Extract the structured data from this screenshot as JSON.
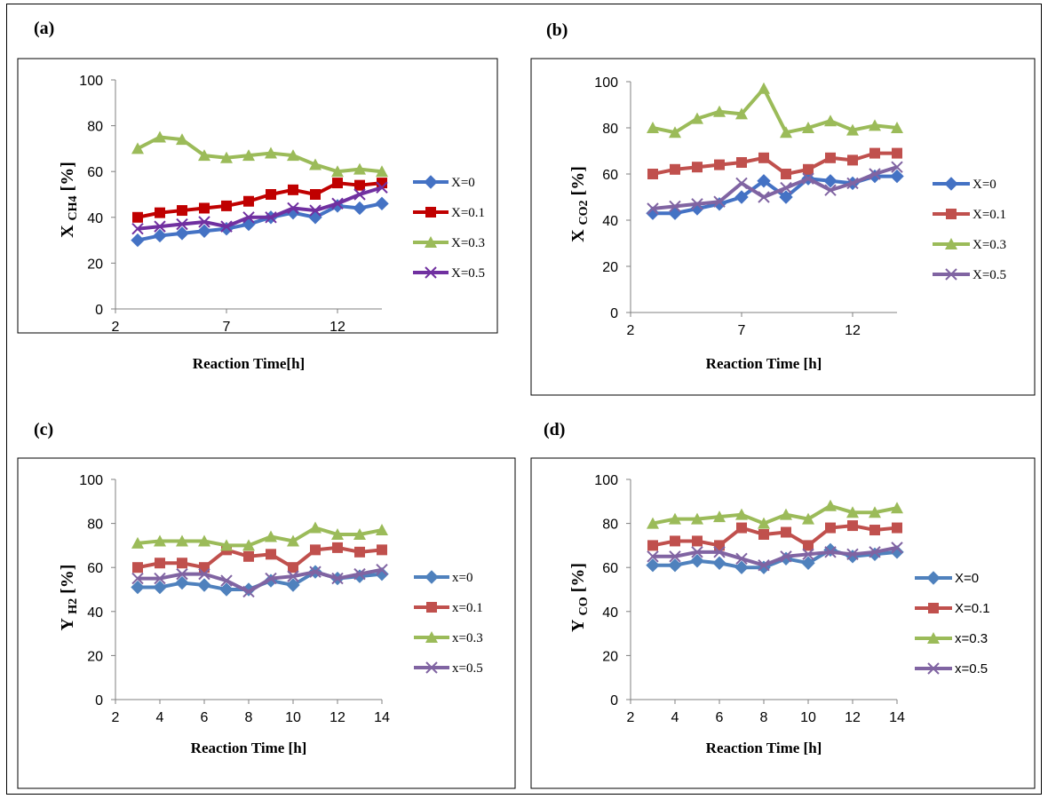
{
  "panels": [
    {
      "letter": "(a)",
      "ylabel_main": "X",
      "ylabel_sub": "CH4",
      "ylabel_unit": "[%]",
      "xlabel": "Reaction Time[h]",
      "chart_data": {
        "type": "line",
        "x": [
          3,
          4,
          5,
          6,
          7,
          8,
          9,
          10,
          11,
          12,
          13,
          14
        ],
        "xlim": [
          2,
          14
        ],
        "xticks": [
          2,
          7,
          12
        ],
        "ylim": [
          0,
          100
        ],
        "yticks": [
          0,
          20,
          40,
          60,
          80,
          100
        ],
        "grid": false,
        "legend_position": "right",
        "series": [
          {
            "name": "X=0",
            "marker": "diamond",
            "color": "#4472c4",
            "values": [
              30,
              32,
              33,
              34,
              35,
              37,
              40,
              42,
              40,
              45,
              44,
              46
            ]
          },
          {
            "name": "X=0.1",
            "marker": "square",
            "color": "#c00000",
            "values": [
              40,
              42,
              43,
              44,
              45,
              47,
              50,
              52,
              50,
              55,
              54,
              55
            ]
          },
          {
            "name": "X=0.3",
            "marker": "triangle",
            "color": "#9bbb59",
            "values": [
              70,
              75,
              74,
              67,
              66,
              67,
              68,
              67,
              63,
              60,
              61,
              60
            ]
          },
          {
            "name": "X=0.5",
            "marker": "x",
            "color": "#7030a0",
            "values": [
              35,
              36,
              37,
              38,
              36,
              40,
              40,
              44,
              43,
              46,
              50,
              53
            ]
          }
        ]
      }
    },
    {
      "letter": "(b)",
      "ylabel_main": "X",
      "ylabel_sub": "CO2",
      "ylabel_unit": "[%]",
      "xlabel": "Reaction Time [h]",
      "chart_data": {
        "type": "line",
        "x": [
          3,
          4,
          5,
          6,
          7,
          8,
          9,
          10,
          11,
          12,
          13,
          14
        ],
        "xlim": [
          2,
          14
        ],
        "xticks": [
          2,
          7,
          12
        ],
        "ylim": [
          0,
          100
        ],
        "yticks": [
          0,
          20,
          40,
          60,
          80,
          100
        ],
        "grid": false,
        "legend_position": "right",
        "series": [
          {
            "name": "X=0",
            "marker": "diamond",
            "color": "#4472c4",
            "values": [
              43,
              43,
              45,
              47,
              50,
              57,
              50,
              58,
              57,
              56,
              59,
              59
            ]
          },
          {
            "name": "X=0.1",
            "marker": "square",
            "color": "#c0504d",
            "values": [
              60,
              62,
              63,
              64,
              65,
              67,
              60,
              62,
              67,
              66,
              69,
              69
            ]
          },
          {
            "name": "X=0.3",
            "marker": "triangle",
            "color": "#9bbb59",
            "values": [
              80,
              78,
              84,
              87,
              86,
              97,
              78,
              80,
              83,
              79,
              81,
              80
            ]
          },
          {
            "name": "X=0.5",
            "marker": "x",
            "color": "#8064a2",
            "values": [
              45,
              46,
              47,
              48,
              56,
              50,
              54,
              58,
              53,
              56,
              60,
              63
            ]
          }
        ]
      }
    },
    {
      "letter": "(c)",
      "ylabel_main": "Y",
      "ylabel_sub": "H2",
      "ylabel_unit": "[%]",
      "xlabel": "Reaction Time [h]",
      "chart_data": {
        "type": "line",
        "x": [
          3,
          4,
          5,
          6,
          7,
          8,
          9,
          10,
          11,
          12,
          13,
          14
        ],
        "xlim": [
          2,
          14
        ],
        "xticks": [
          2,
          4,
          6,
          8,
          10,
          12,
          14
        ],
        "ylim": [
          0,
          100
        ],
        "yticks": [
          0,
          20,
          40,
          60,
          80,
          100
        ],
        "grid": false,
        "legend_position": "right",
        "series": [
          {
            "name": "x=0",
            "marker": "diamond",
            "color": "#4f81bd",
            "values": [
              51,
              51,
              53,
              52,
              50,
              50,
              54,
              52,
              58,
              55,
              56,
              57
            ]
          },
          {
            "name": "x=0.1",
            "marker": "square",
            "color": "#c0504d",
            "values": [
              60,
              62,
              62,
              60,
              68,
              65,
              66,
              60,
              68,
              69,
              67,
              68
            ]
          },
          {
            "name": "x=0.3",
            "marker": "triangle",
            "color": "#9bbb59",
            "values": [
              71,
              72,
              72,
              72,
              70,
              70,
              74,
              72,
              78,
              75,
              75,
              77
            ]
          },
          {
            "name": "x=0.5",
            "marker": "x",
            "color": "#8064a2",
            "values": [
              55,
              55,
              57,
              57,
              54,
              49,
              55,
              56,
              58,
              55,
              57,
              59
            ]
          }
        ]
      }
    },
    {
      "letter": "(d)",
      "ylabel_main": "Y",
      "ylabel_sub": "CO",
      "ylabel_unit": "[%]",
      "xlabel": "Reaction Time [h]",
      "chart_data": {
        "type": "line",
        "x": [
          3,
          4,
          5,
          6,
          7,
          8,
          9,
          10,
          11,
          12,
          13,
          14
        ],
        "xlim": [
          2,
          14
        ],
        "xticks": [
          2,
          4,
          6,
          8,
          10,
          12,
          14
        ],
        "ylim": [
          0,
          100
        ],
        "yticks": [
          0,
          20,
          40,
          60,
          80,
          100
        ],
        "grid": false,
        "legend_position": "right",
        "series": [
          {
            "name": "X=0",
            "marker": "diamond",
            "color": "#4f81bd",
            "values": [
              61,
              61,
              63,
              62,
              60,
              60,
              64,
              62,
              68,
              65,
              66,
              67
            ]
          },
          {
            "name": "X=0.1",
            "marker": "square",
            "color": "#c0504d",
            "values": [
              70,
              72,
              72,
              70,
              78,
              75,
              76,
              70,
              78,
              79,
              77,
              78
            ]
          },
          {
            "name": "x=0.3",
            "marker": "triangle",
            "color": "#9bbb59",
            "values": [
              80,
              82,
              82,
              83,
              84,
              80,
              84,
              82,
              88,
              85,
              85,
              87
            ]
          },
          {
            "name": "x=0.5",
            "marker": "x",
            "color": "#8064a2",
            "values": [
              65,
              65,
              67,
              67,
              64,
              61,
              65,
              66,
              67,
              66,
              67,
              69
            ]
          }
        ]
      }
    }
  ]
}
